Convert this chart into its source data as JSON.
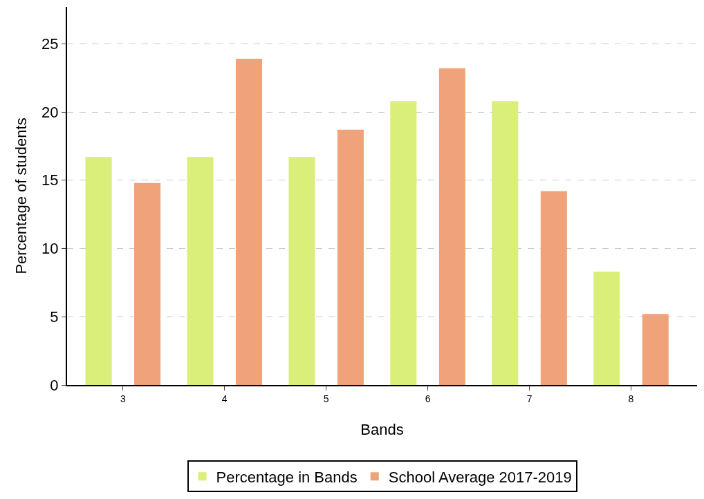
{
  "chart_data": {
    "type": "bar",
    "xlabel": "Bands",
    "ylabel": "Percentage of students",
    "categories": [
      "3",
      "4",
      "5",
      "6",
      "7",
      "8"
    ],
    "series": [
      {
        "name": "Percentage in Bands",
        "color": "#d9ef7a",
        "values": [
          16.7,
          16.7,
          16.7,
          20.8,
          20.8,
          8.3
        ]
      },
      {
        "name": "School Average 2017-2019",
        "color": "#f0a37a",
        "values": [
          14.8,
          23.9,
          18.7,
          23.2,
          14.2,
          5.2
        ]
      }
    ],
    "ylim": [
      0,
      27.7
    ],
    "yticks": [
      0,
      5,
      10,
      15,
      20,
      25
    ],
    "grid": "y",
    "legend": "bottom"
  }
}
